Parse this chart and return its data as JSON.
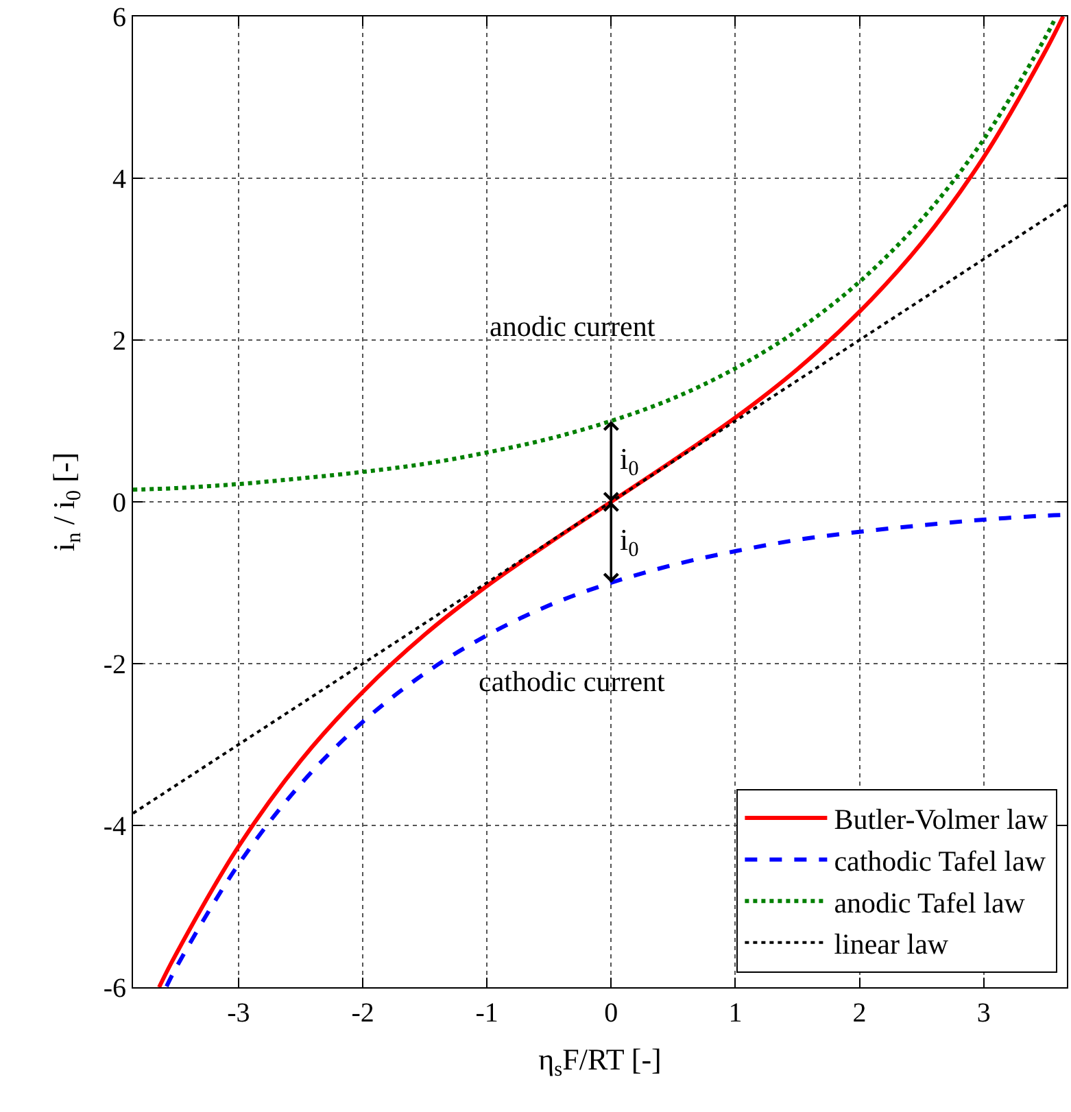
{
  "chart_data": {
    "type": "line",
    "xlabel": "η$_{s}$F/RT [-]",
    "ylabel": "i$_{n}$ / i$_{0}$ [-]",
    "xlim": [
      -3.85,
      3.67
    ],
    "ylim": [
      -6,
      6
    ],
    "xticks": [
      -3,
      -2,
      -1,
      0,
      1,
      2,
      3
    ],
    "yticks": [
      -6,
      -4,
      -2,
      0,
      2,
      4,
      6
    ],
    "grid": true,
    "legend": "bottom right",
    "marker": "none",
    "series": [
      {
        "name": "Butler-Volmer law",
        "color": "#ff0000",
        "line_style": "solid",
        "x": [
          -3.64,
          -3.5,
          -3,
          -2.5,
          -2,
          -1.5,
          -1,
          -0.5,
          0,
          0.5,
          1,
          1.5,
          2,
          2.5,
          3,
          3.5,
          3.64
        ],
        "values": [
          -6.0,
          -5.58,
          -4.26,
          -3.2,
          -2.35,
          -1.64,
          -1.04,
          -0.51,
          0,
          0.51,
          1.04,
          1.64,
          2.35,
          3.2,
          4.26,
          5.58,
          6.0
        ]
      },
      {
        "name": "cathodic Tafel law",
        "color": "#0000ff",
        "line_style": "dashed",
        "x": [
          -3.58,
          -3.5,
          -3,
          -2.5,
          -2,
          -1.5,
          -1,
          -0.5,
          0,
          0.5,
          1,
          1.5,
          2,
          2.5,
          3,
          3.5,
          3.67
        ],
        "values": [
          -5.99,
          -5.75,
          -4.48,
          -3.49,
          -2.72,
          -2.12,
          -1.65,
          -1.28,
          -1,
          -0.78,
          -0.61,
          -0.47,
          -0.37,
          -0.29,
          -0.22,
          -0.17,
          -0.16
        ]
      },
      {
        "name": "anodic Tafel law",
        "color": "#008000",
        "line_style": "dotted",
        "x": [
          -3.85,
          -3.5,
          -3,
          -2.5,
          -2,
          -1.5,
          -1,
          -0.5,
          0,
          0.5,
          1,
          1.5,
          2,
          2.5,
          3,
          3.5,
          3.58
        ],
        "values": [
          0.15,
          0.17,
          0.22,
          0.29,
          0.37,
          0.47,
          0.61,
          0.78,
          1,
          1.28,
          1.65,
          2.12,
          2.72,
          3.49,
          4.48,
          5.75,
          5.99
        ]
      },
      {
        "name": "linear law",
        "color": "#000000",
        "line_style": "dotted",
        "x": [
          -3.85,
          3.67
        ],
        "values": [
          -3.85,
          3.67
        ]
      }
    ],
    "annotations": [
      "anodic current",
      "cathodic current",
      {
        "text": "i$_{0}$",
        "x": 0,
        "y": 1
      },
      {
        "text": "i$_{0}$",
        "x": 0,
        "y": -1
      }
    ]
  }
}
